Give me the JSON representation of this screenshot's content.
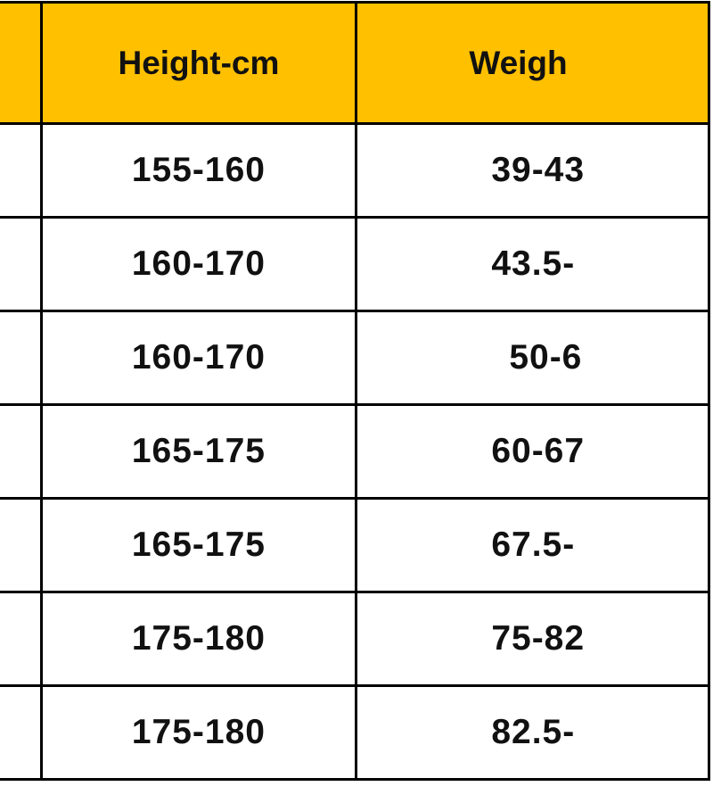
{
  "colors": {
    "header_bg": "#FFC000",
    "border": "#000000"
  },
  "table": {
    "headers": [
      "",
      "Height-cm",
      "Weigh"
    ],
    "rows": [
      [
        "",
        "155-160",
        "39-43"
      ],
      [
        "",
        "160-170",
        "43.5-"
      ],
      [
        "",
        "160-170",
        "50-6"
      ],
      [
        "",
        "165-175",
        "60-67"
      ],
      [
        "",
        "165-175",
        "67.5-"
      ],
      [
        "",
        "175-180",
        "75-82"
      ],
      [
        "",
        "175-180",
        "82.5-"
      ]
    ]
  }
}
